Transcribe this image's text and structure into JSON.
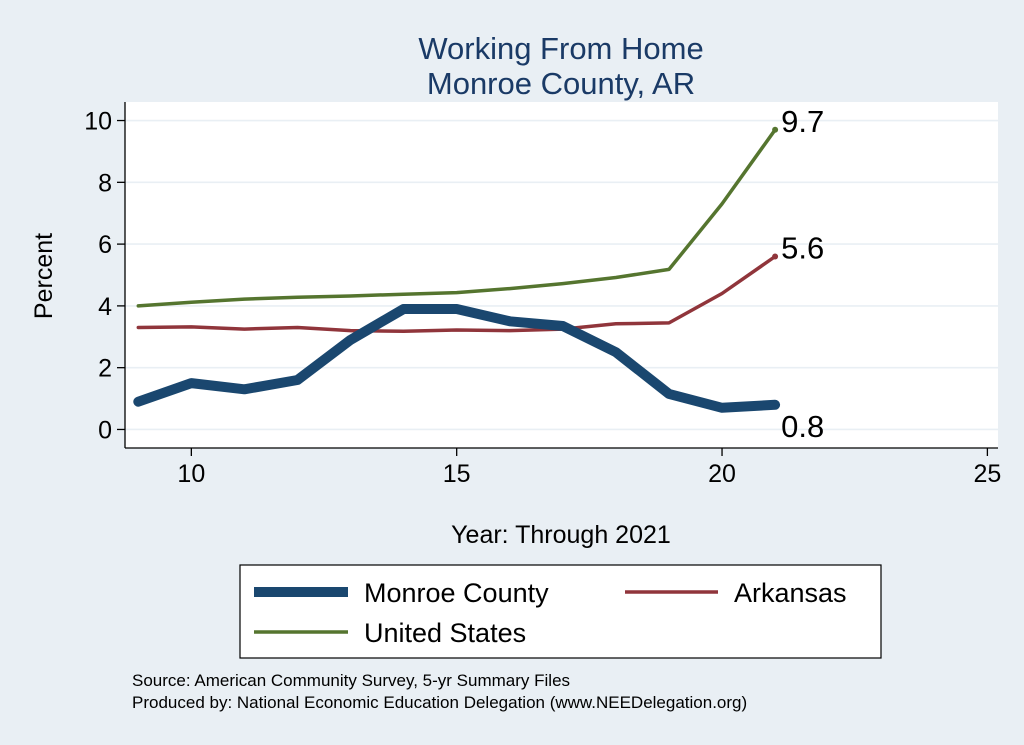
{
  "chart_data": {
    "type": "line",
    "title": [
      "Working From Home",
      "Monroe County, AR"
    ],
    "xlabel": "Year: Through 2021",
    "ylabel": "Percent",
    "xlim": [
      8.75,
      25.2
    ],
    "ylim": [
      -0.6,
      10.6
    ],
    "xticks": [
      10,
      15,
      20,
      25
    ],
    "yticks": [
      0,
      2,
      4,
      6,
      8,
      10
    ],
    "grid": "horizontal",
    "legend_position": "bottom",
    "series": [
      {
        "name": "Monroe County",
        "color": "#1a476f",
        "x": [
          9,
          10,
          11,
          12,
          13,
          14,
          15,
          16,
          17,
          18,
          19,
          20,
          21
        ],
        "values": [
          0.9,
          1.5,
          1.3,
          1.6,
          2.9,
          3.9,
          3.9,
          3.5,
          3.35,
          2.5,
          1.15,
          0.7,
          0.8
        ],
        "end_label": "0.8"
      },
      {
        "name": "Arkansas",
        "color": "#90353b",
        "x": [
          9,
          10,
          11,
          12,
          13,
          14,
          15,
          16,
          17,
          18,
          19,
          20,
          21
        ],
        "values": [
          3.3,
          3.32,
          3.25,
          3.3,
          3.2,
          3.18,
          3.22,
          3.2,
          3.25,
          3.42,
          3.45,
          4.4,
          5.6
        ],
        "end_label": "5.6"
      },
      {
        "name": "United States",
        "color": "#55752f",
        "x": [
          9,
          10,
          11,
          12,
          13,
          14,
          15,
          16,
          17,
          18,
          19,
          20,
          21
        ],
        "values": [
          4.0,
          4.12,
          4.22,
          4.28,
          4.32,
          4.38,
          4.43,
          4.56,
          4.72,
          4.92,
          5.18,
          7.3,
          9.7
        ],
        "end_label": "9.7"
      }
    ]
  },
  "notes": [
    "Source: American Community Survey, 5-yr Summary Files",
    "Produced by: National Economic Education Delegation (www.NEEDelegation.org)"
  ]
}
